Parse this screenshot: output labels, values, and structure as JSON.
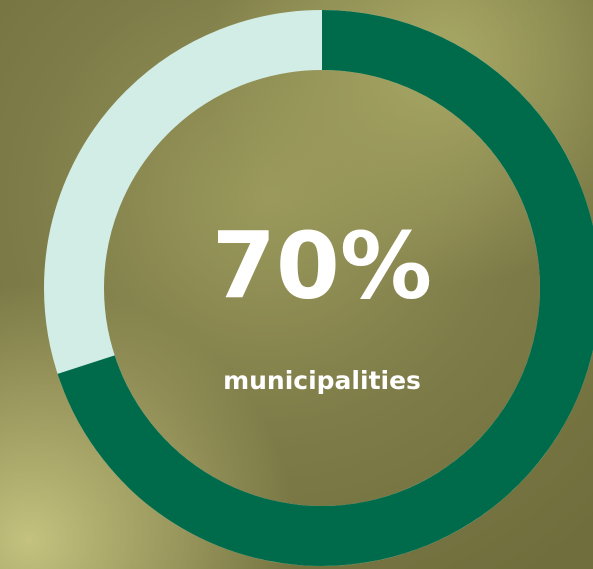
{
  "chart_data": {
    "type": "donut",
    "values": [
      70
    ],
    "value_labels": [
      "70%"
    ],
    "caption": "municipalities",
    "color": "#006b4a",
    "track_color": "#d2ede6"
  }
}
